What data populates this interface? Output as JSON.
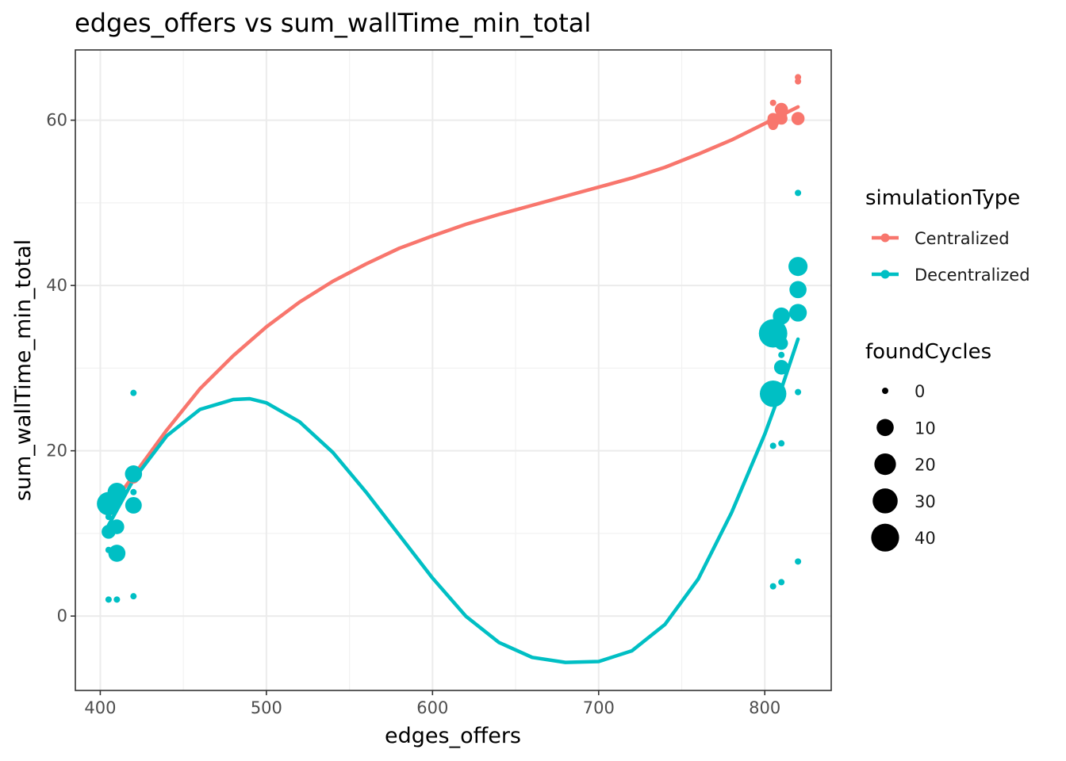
{
  "chart_data": {
    "type": "scatter",
    "title": "edges_offers  vs  sum_wallTime_min_total",
    "xlabel": "edges_offers",
    "ylabel": "sum_wallTime_min_total",
    "xlim": [
      385,
      840
    ],
    "ylim": [
      -9,
      68.5
    ],
    "x_ticks": [
      400,
      500,
      600,
      700,
      800
    ],
    "y_ticks": [
      0,
      20,
      40,
      60
    ],
    "grid": true,
    "legend_placement": "right",
    "colors": {
      "Centralized": "#F8766D",
      "Decentralized": "#00BFC4"
    },
    "color_legend": {
      "title": "simulationType",
      "entries": [
        "Centralized",
        "Decentralized"
      ]
    },
    "size_legend": {
      "title": "foundCycles",
      "values": [
        0,
        10,
        20,
        30,
        40
      ]
    },
    "series": [
      {
        "name": "Centralized",
        "points": [
          {
            "x": 405,
            "y": 12.8,
            "size": 2
          },
          {
            "x": 405,
            "y": 13.3,
            "size": 2
          },
          {
            "x": 410,
            "y": 14.8,
            "size": 2
          },
          {
            "x": 410,
            "y": 15.1,
            "size": 3
          },
          {
            "x": 420,
            "y": 16.7,
            "size": 2
          },
          {
            "x": 420,
            "y": 17.0,
            "size": 4
          },
          {
            "x": 805,
            "y": 59.4,
            "size": 1
          },
          {
            "x": 805,
            "y": 59.8,
            "size": 3
          },
          {
            "x": 805,
            "y": 60.2,
            "size": 2
          },
          {
            "x": 805,
            "y": 62.1,
            "size": 0
          },
          {
            "x": 810,
            "y": 60.2,
            "size": 3
          },
          {
            "x": 810,
            "y": 60.6,
            "size": 2
          },
          {
            "x": 810,
            "y": 61.3,
            "size": 4
          },
          {
            "x": 820,
            "y": 60.2,
            "size": 4
          },
          {
            "x": 820,
            "y": 64.7,
            "size": 0
          },
          {
            "x": 820,
            "y": 65.2,
            "size": 0
          }
        ],
        "smooth": [
          [
            405,
            12.9
          ],
          [
            420,
            17.0
          ],
          [
            440,
            22.5
          ],
          [
            460,
            27.5
          ],
          [
            480,
            31.5
          ],
          [
            500,
            35.0
          ],
          [
            520,
            38.0
          ],
          [
            540,
            40.5
          ],
          [
            560,
            42.6
          ],
          [
            580,
            44.5
          ],
          [
            600,
            46.0
          ],
          [
            620,
            47.4
          ],
          [
            640,
            48.6
          ],
          [
            660,
            49.7
          ],
          [
            680,
            50.8
          ],
          [
            700,
            51.9
          ],
          [
            720,
            53.0
          ],
          [
            740,
            54.3
          ],
          [
            760,
            55.9
          ],
          [
            780,
            57.6
          ],
          [
            800,
            59.6
          ],
          [
            820,
            61.6
          ]
        ]
      },
      {
        "name": "Decentralized",
        "points": [
          {
            "x": 405,
            "y": 2.0,
            "size": 0
          },
          {
            "x": 405,
            "y": 8.0,
            "size": 0
          },
          {
            "x": 405,
            "y": 10.2,
            "size": 5
          },
          {
            "x": 405,
            "y": 12.0,
            "size": 0
          },
          {
            "x": 405,
            "y": 13.6,
            "size": 25
          },
          {
            "x": 410,
            "y": 2.0,
            "size": 0
          },
          {
            "x": 410,
            "y": 7.6,
            "size": 10
          },
          {
            "x": 410,
            "y": 10.8,
            "size": 6
          },
          {
            "x": 410,
            "y": 13.9,
            "size": 0
          },
          {
            "x": 410,
            "y": 15.0,
            "size": 13
          },
          {
            "x": 420,
            "y": 2.4,
            "size": 0
          },
          {
            "x": 420,
            "y": 13.4,
            "size": 9
          },
          {
            "x": 420,
            "y": 15.0,
            "size": 0
          },
          {
            "x": 420,
            "y": 17.2,
            "size": 10
          },
          {
            "x": 420,
            "y": 27.0,
            "size": 0
          },
          {
            "x": 805,
            "y": 3.6,
            "size": 0
          },
          {
            "x": 805,
            "y": 20.6,
            "size": 0
          },
          {
            "x": 805,
            "y": 26.9,
            "size": 35
          },
          {
            "x": 805,
            "y": 34.2,
            "size": 42
          },
          {
            "x": 810,
            "y": 4.1,
            "size": 0
          },
          {
            "x": 810,
            "y": 20.9,
            "size": 0
          },
          {
            "x": 810,
            "y": 30.1,
            "size": 6
          },
          {
            "x": 810,
            "y": 31.6,
            "size": 0
          },
          {
            "x": 810,
            "y": 33.0,
            "size": 4
          },
          {
            "x": 810,
            "y": 36.3,
            "size": 10
          },
          {
            "x": 820,
            "y": 6.6,
            "size": 0
          },
          {
            "x": 820,
            "y": 27.1,
            "size": 0
          },
          {
            "x": 820,
            "y": 36.7,
            "size": 11
          },
          {
            "x": 820,
            "y": 39.5,
            "size": 10
          },
          {
            "x": 820,
            "y": 42.3,
            "size": 14
          },
          {
            "x": 820,
            "y": 51.2,
            "size": 0
          }
        ],
        "smooth": [
          [
            405,
            11.0
          ],
          [
            420,
            16.5
          ],
          [
            440,
            21.8
          ],
          [
            460,
            25.0
          ],
          [
            480,
            26.2
          ],
          [
            490,
            26.3
          ],
          [
            500,
            25.8
          ],
          [
            520,
            23.5
          ],
          [
            540,
            19.8
          ],
          [
            560,
            15.0
          ],
          [
            580,
            9.8
          ],
          [
            600,
            4.6
          ],
          [
            620,
            0.0
          ],
          [
            640,
            -3.2
          ],
          [
            660,
            -5.0
          ],
          [
            680,
            -5.6
          ],
          [
            700,
            -5.5
          ],
          [
            720,
            -4.2
          ],
          [
            740,
            -1.0
          ],
          [
            760,
            4.5
          ],
          [
            780,
            12.5
          ],
          [
            800,
            22.0
          ],
          [
            810,
            27.5
          ],
          [
            820,
            33.5
          ]
        ]
      }
    ]
  }
}
